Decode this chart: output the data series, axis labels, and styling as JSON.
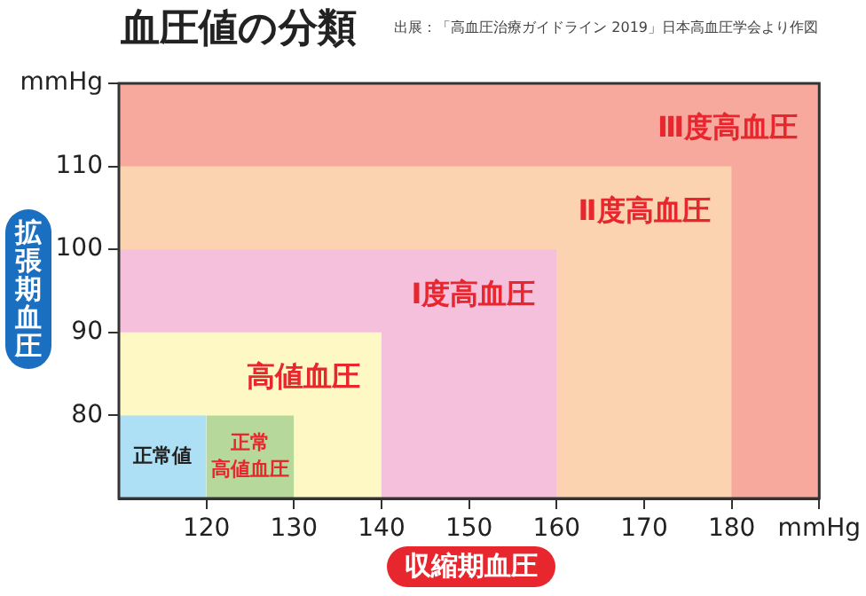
{
  "chart_data": {
    "type": "area",
    "title": "血圧値の分類",
    "xlabel": "収縮期血圧",
    "ylabel": "拡張期血圧",
    "annotations": [
      "出展：「高血圧治療ガイドライン 2019」日本高血圧学会より作図"
    ],
    "xlim": [
      110,
      190
    ],
    "xticks": [
      120,
      130,
      140,
      150,
      160,
      170,
      180,
      {
        "value": 190,
        "label": "mmHg"
      }
    ],
    "ylim": [
      70,
      120
    ],
    "yticks": [
      80,
      90,
      100,
      110,
      {
        "value": 120,
        "label": "mmHg"
      }
    ],
    "legend": false,
    "series": [
      {
        "name": "Ⅲ度高血圧",
        "color": "#f7a99d",
        "x": [
          110,
          190
        ],
        "values": [
          120,
          120
        ]
      },
      {
        "name": "Ⅱ度高血圧",
        "color": "#fbd3b0",
        "x": [
          110,
          180
        ],
        "values": [
          110,
          110
        ]
      },
      {
        "name": "Ⅰ度高血圧",
        "color": "#f5c0dc",
        "x": [
          110,
          160
        ],
        "values": [
          100,
          100
        ]
      },
      {
        "name": "高値血圧",
        "color": "#fdf8c4",
        "x": [
          110,
          140
        ],
        "values": [
          90,
          90
        ]
      },
      {
        "name": "正常高値血圧",
        "color": "#b6d99b",
        "x": [
          120,
          130
        ],
        "values": [
          80,
          80
        ]
      },
      {
        "name": "正常値",
        "color": "#aee0f5",
        "x": [
          110,
          120
        ],
        "values": [
          80,
          80
        ]
      }
    ]
  }
}
